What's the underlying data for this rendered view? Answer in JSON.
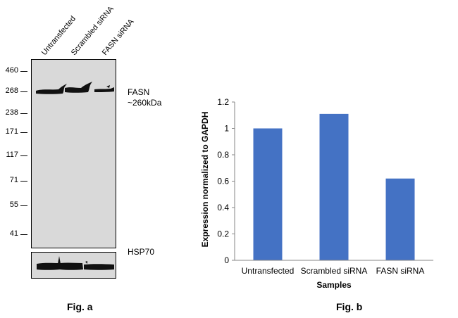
{
  "fig_a": {
    "lanes": [
      "Untransfected",
      "Scrambled siRNA",
      "FASN siRNA"
    ],
    "mw_markers": [
      "460",
      "268",
      "238",
      "171",
      "117",
      "71",
      "55",
      "41"
    ],
    "band_label": "FASN",
    "band_size": "~260kDa",
    "loading_control": "HSP70",
    "caption": "Fig. a"
  },
  "fig_b": {
    "caption": "Fig. b"
  },
  "chart_data": {
    "type": "bar",
    "categories": [
      "Untransfected",
      "Scrambled siRNA",
      "FASN siRNA"
    ],
    "values": [
      1.0,
      1.11,
      0.62
    ],
    "xlabel": "Samples",
    "ylabel": "Expression normalized to GAPDH",
    "ylim": [
      0,
      1.2
    ],
    "yticks": [
      "0",
      "0.2",
      "0.4",
      "0.6",
      "0.8",
      "1",
      "1.2"
    ],
    "bar_color": "#4472c4",
    "grid": false,
    "legend": "none"
  }
}
